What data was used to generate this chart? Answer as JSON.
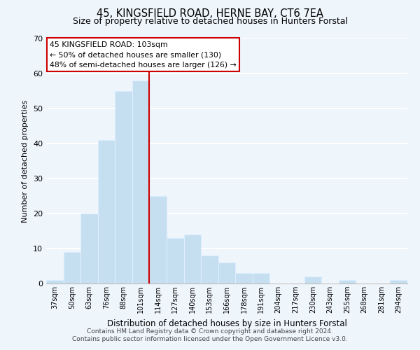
{
  "title": "45, KINGSFIELD ROAD, HERNE BAY, CT6 7EA",
  "subtitle": "Size of property relative to detached houses in Hunters Forstal",
  "xlabel": "Distribution of detached houses by size in Hunters Forstal",
  "ylabel": "Number of detached properties",
  "bar_labels": [
    "37sqm",
    "50sqm",
    "63sqm",
    "76sqm",
    "88sqm",
    "101sqm",
    "114sqm",
    "127sqm",
    "140sqm",
    "153sqm",
    "166sqm",
    "178sqm",
    "191sqm",
    "204sqm",
    "217sqm",
    "230sqm",
    "243sqm",
    "255sqm",
    "268sqm",
    "281sqm",
    "294sqm"
  ],
  "bar_values": [
    1,
    9,
    20,
    41,
    55,
    58,
    25,
    13,
    14,
    8,
    6,
    3,
    3,
    0,
    0,
    2,
    0,
    1,
    0,
    0,
    1
  ],
  "bar_color": "#c5dff0",
  "bar_edge_color": "#ddeeff",
  "vline_x_idx": 5,
  "vline_color": "#cc0000",
  "annotation_title": "45 KINGSFIELD ROAD: 103sqm",
  "annotation_line1": "← 50% of detached houses are smaller (130)",
  "annotation_line2": "48% of semi-detached houses are larger (126) →",
  "annotation_box_facecolor": "#ffffff",
  "annotation_box_edgecolor": "#cc0000",
  "ylim": [
    0,
    70
  ],
  "yticks": [
    0,
    10,
    20,
    30,
    40,
    50,
    60,
    70
  ],
  "background_color": "#eef5fb",
  "grid_color": "#ffffff",
  "title_fontsize": 10.5,
  "subtitle_fontsize": 9,
  "footer1": "Contains HM Land Registry data © Crown copyright and database right 2024.",
  "footer2": "Contains public sector information licensed under the Open Government Licence v3.0."
}
